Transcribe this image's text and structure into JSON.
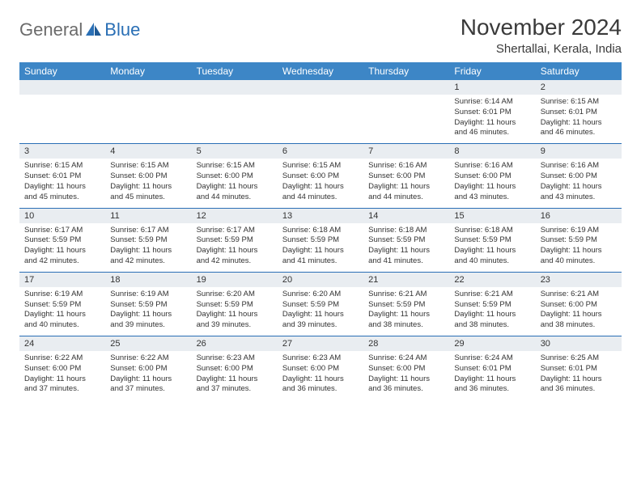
{
  "brand": {
    "general": "General",
    "blue": "Blue"
  },
  "title": "November 2024",
  "location": "Shertallai, Kerala, India",
  "colors": {
    "header_bg": "#3d86c6",
    "header_text": "#ffffff",
    "daynum_bg": "#e9edf1",
    "row_border": "#2a6fb5",
    "text": "#333333",
    "logo_gray": "#6b6b6b",
    "logo_blue": "#2a6fb5",
    "page_bg": "#ffffff"
  },
  "typography": {
    "title_fontsize": 28,
    "location_fontsize": 15,
    "weekday_fontsize": 12,
    "daynum_fontsize": 11,
    "cell_fontsize": 9.5
  },
  "weekdays": [
    "Sunday",
    "Monday",
    "Tuesday",
    "Wednesday",
    "Thursday",
    "Friday",
    "Saturday"
  ],
  "weeks": [
    {
      "nums": [
        "",
        "",
        "",
        "",
        "",
        "1",
        "2"
      ],
      "cells": [
        {
          "sunrise": "",
          "sunset": "",
          "daylight": ""
        },
        {
          "sunrise": "",
          "sunset": "",
          "daylight": ""
        },
        {
          "sunrise": "",
          "sunset": "",
          "daylight": ""
        },
        {
          "sunrise": "",
          "sunset": "",
          "daylight": ""
        },
        {
          "sunrise": "",
          "sunset": "",
          "daylight": ""
        },
        {
          "sunrise": "Sunrise: 6:14 AM",
          "sunset": "Sunset: 6:01 PM",
          "daylight": "Daylight: 11 hours and 46 minutes."
        },
        {
          "sunrise": "Sunrise: 6:15 AM",
          "sunset": "Sunset: 6:01 PM",
          "daylight": "Daylight: 11 hours and 46 minutes."
        }
      ]
    },
    {
      "nums": [
        "3",
        "4",
        "5",
        "6",
        "7",
        "8",
        "9"
      ],
      "cells": [
        {
          "sunrise": "Sunrise: 6:15 AM",
          "sunset": "Sunset: 6:01 PM",
          "daylight": "Daylight: 11 hours and 45 minutes."
        },
        {
          "sunrise": "Sunrise: 6:15 AM",
          "sunset": "Sunset: 6:00 PM",
          "daylight": "Daylight: 11 hours and 45 minutes."
        },
        {
          "sunrise": "Sunrise: 6:15 AM",
          "sunset": "Sunset: 6:00 PM",
          "daylight": "Daylight: 11 hours and 44 minutes."
        },
        {
          "sunrise": "Sunrise: 6:15 AM",
          "sunset": "Sunset: 6:00 PM",
          "daylight": "Daylight: 11 hours and 44 minutes."
        },
        {
          "sunrise": "Sunrise: 6:16 AM",
          "sunset": "Sunset: 6:00 PM",
          "daylight": "Daylight: 11 hours and 44 minutes."
        },
        {
          "sunrise": "Sunrise: 6:16 AM",
          "sunset": "Sunset: 6:00 PM",
          "daylight": "Daylight: 11 hours and 43 minutes."
        },
        {
          "sunrise": "Sunrise: 6:16 AM",
          "sunset": "Sunset: 6:00 PM",
          "daylight": "Daylight: 11 hours and 43 minutes."
        }
      ]
    },
    {
      "nums": [
        "10",
        "11",
        "12",
        "13",
        "14",
        "15",
        "16"
      ],
      "cells": [
        {
          "sunrise": "Sunrise: 6:17 AM",
          "sunset": "Sunset: 5:59 PM",
          "daylight": "Daylight: 11 hours and 42 minutes."
        },
        {
          "sunrise": "Sunrise: 6:17 AM",
          "sunset": "Sunset: 5:59 PM",
          "daylight": "Daylight: 11 hours and 42 minutes."
        },
        {
          "sunrise": "Sunrise: 6:17 AM",
          "sunset": "Sunset: 5:59 PM",
          "daylight": "Daylight: 11 hours and 42 minutes."
        },
        {
          "sunrise": "Sunrise: 6:18 AM",
          "sunset": "Sunset: 5:59 PM",
          "daylight": "Daylight: 11 hours and 41 minutes."
        },
        {
          "sunrise": "Sunrise: 6:18 AM",
          "sunset": "Sunset: 5:59 PM",
          "daylight": "Daylight: 11 hours and 41 minutes."
        },
        {
          "sunrise": "Sunrise: 6:18 AM",
          "sunset": "Sunset: 5:59 PM",
          "daylight": "Daylight: 11 hours and 40 minutes."
        },
        {
          "sunrise": "Sunrise: 6:19 AM",
          "sunset": "Sunset: 5:59 PM",
          "daylight": "Daylight: 11 hours and 40 minutes."
        }
      ]
    },
    {
      "nums": [
        "17",
        "18",
        "19",
        "20",
        "21",
        "22",
        "23"
      ],
      "cells": [
        {
          "sunrise": "Sunrise: 6:19 AM",
          "sunset": "Sunset: 5:59 PM",
          "daylight": "Daylight: 11 hours and 40 minutes."
        },
        {
          "sunrise": "Sunrise: 6:19 AM",
          "sunset": "Sunset: 5:59 PM",
          "daylight": "Daylight: 11 hours and 39 minutes."
        },
        {
          "sunrise": "Sunrise: 6:20 AM",
          "sunset": "Sunset: 5:59 PM",
          "daylight": "Daylight: 11 hours and 39 minutes."
        },
        {
          "sunrise": "Sunrise: 6:20 AM",
          "sunset": "Sunset: 5:59 PM",
          "daylight": "Daylight: 11 hours and 39 minutes."
        },
        {
          "sunrise": "Sunrise: 6:21 AM",
          "sunset": "Sunset: 5:59 PM",
          "daylight": "Daylight: 11 hours and 38 minutes."
        },
        {
          "sunrise": "Sunrise: 6:21 AM",
          "sunset": "Sunset: 5:59 PM",
          "daylight": "Daylight: 11 hours and 38 minutes."
        },
        {
          "sunrise": "Sunrise: 6:21 AM",
          "sunset": "Sunset: 6:00 PM",
          "daylight": "Daylight: 11 hours and 38 minutes."
        }
      ]
    },
    {
      "nums": [
        "24",
        "25",
        "26",
        "27",
        "28",
        "29",
        "30"
      ],
      "cells": [
        {
          "sunrise": "Sunrise: 6:22 AM",
          "sunset": "Sunset: 6:00 PM",
          "daylight": "Daylight: 11 hours and 37 minutes."
        },
        {
          "sunrise": "Sunrise: 6:22 AM",
          "sunset": "Sunset: 6:00 PM",
          "daylight": "Daylight: 11 hours and 37 minutes."
        },
        {
          "sunrise": "Sunrise: 6:23 AM",
          "sunset": "Sunset: 6:00 PM",
          "daylight": "Daylight: 11 hours and 37 minutes."
        },
        {
          "sunrise": "Sunrise: 6:23 AM",
          "sunset": "Sunset: 6:00 PM",
          "daylight": "Daylight: 11 hours and 36 minutes."
        },
        {
          "sunrise": "Sunrise: 6:24 AM",
          "sunset": "Sunset: 6:00 PM",
          "daylight": "Daylight: 11 hours and 36 minutes."
        },
        {
          "sunrise": "Sunrise: 6:24 AM",
          "sunset": "Sunset: 6:01 PM",
          "daylight": "Daylight: 11 hours and 36 minutes."
        },
        {
          "sunrise": "Sunrise: 6:25 AM",
          "sunset": "Sunset: 6:01 PM",
          "daylight": "Daylight: 11 hours and 36 minutes."
        }
      ]
    }
  ]
}
